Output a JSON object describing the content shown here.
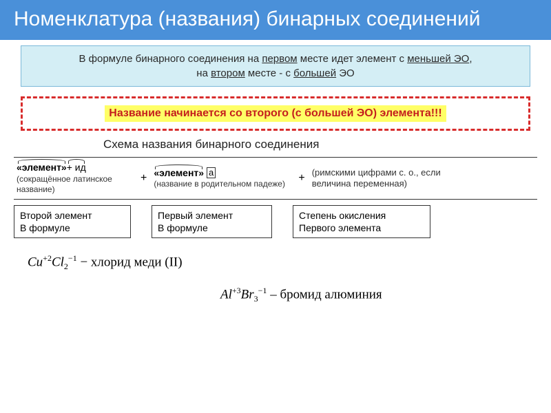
{
  "header": {
    "title": "Номенклатура (названия) бинарных соединений"
  },
  "ruleBox": {
    "line1_a": "В формуле бинарного соединения на ",
    "line1_u1": "первом",
    "line1_b": " месте идет элемент с ",
    "line1_u2": "меньшей ЭО",
    "line1_c": ",",
    "line2_a": "на ",
    "line2_u1": "втором",
    "line2_b": " месте - с ",
    "line2_u2": "большей",
    "line2_c": " ЭО"
  },
  "highlightText": "Название начинается со второго (с большей ЭО) элемента!!!",
  "schemeTitle": "Схема названия бинарного соединения",
  "scheme": {
    "col1_top_a": "«элемент»",
    "col1_top_b": " + ид",
    "col1_sub": "(сокращённое латинское название)",
    "col2_top_a": "«элемент»",
    "col2_top_b": "а",
    "col2_sub": "(название в родительном падеже)",
    "col3_sub": "(римскими цифрами с. о., если величина переменная)"
  },
  "labels": {
    "l1_a": "Второй элемент",
    "l1_b": "В формуле",
    "l2_a": "Первый элемент",
    "l2_b": "В формуле",
    "l3_a": "Степень окисления",
    "l3_b": "Первого элемента"
  },
  "formulas": {
    "f1": {
      "el1": "Cu",
      "ox1": "+2",
      "el2": "Cl",
      "sub2": "2",
      "ox2": "−1",
      "name": " − хлорид меди (II)"
    },
    "f2": {
      "el1": "Al",
      "ox1": "+3",
      "el2": "Br",
      "sub2": "3",
      "ox2": "−1",
      "name": "  – бромид алюминия"
    }
  },
  "colors": {
    "headerBg": "#4a90d9",
    "ruleBg": "#d4eef5",
    "ruleBorder": "#7bb8d9",
    "dashBorder": "#d82c2c",
    "highlightBg": "#ffff66",
    "highlightText": "#c41e1e"
  }
}
